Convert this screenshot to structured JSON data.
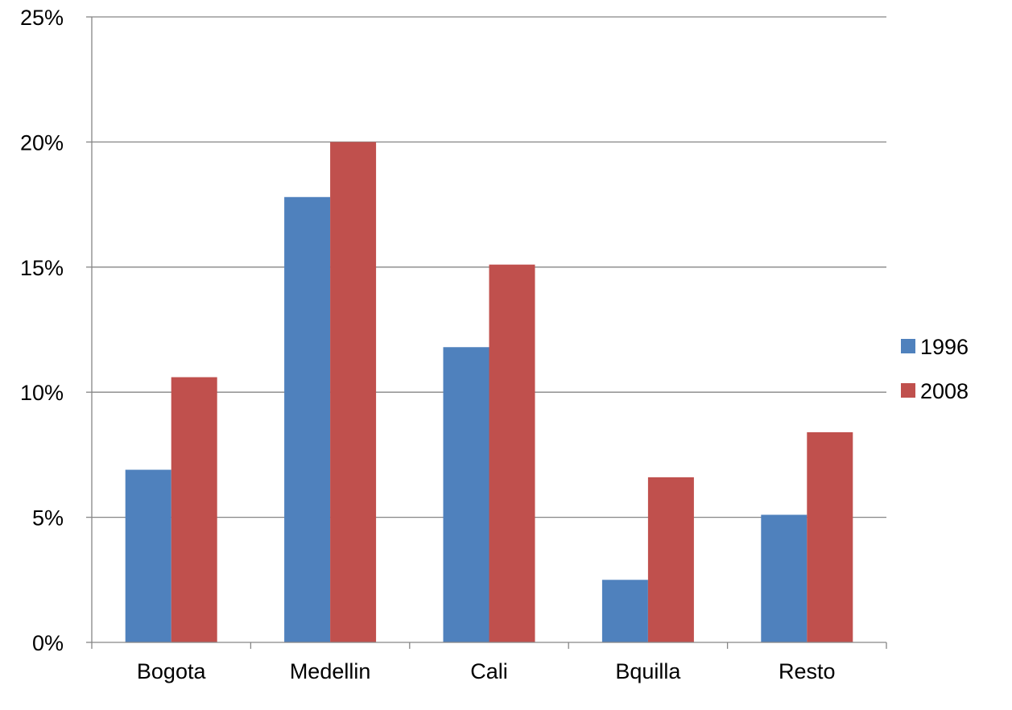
{
  "chart_data": {
    "type": "bar",
    "title": "",
    "xlabel": "",
    "ylabel": "",
    "categories": [
      "Bogota",
      "Medellin",
      "Cali",
      "Bquilla",
      "Resto"
    ],
    "series": [
      {
        "name": "1996",
        "color": "#4F81BD",
        "values": [
          6.9,
          17.8,
          11.8,
          2.5,
          5.1
        ]
      },
      {
        "name": "2008",
        "color": "#C0504D",
        "values": [
          10.6,
          20.0,
          15.1,
          6.6,
          8.4
        ]
      }
    ],
    "ylim": [
      0,
      25
    ],
    "yticks": [
      0,
      5,
      10,
      15,
      20,
      25
    ],
    "ytick_labels": [
      "0%",
      "5%",
      "10%",
      "15%",
      "20%",
      "25%"
    ],
    "grid": true,
    "legend_position": "right"
  }
}
